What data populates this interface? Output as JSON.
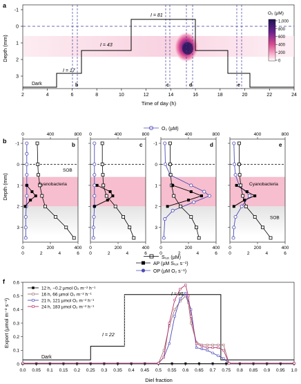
{
  "panel_a": {
    "label": "a",
    "xlabel": "Time of day (h)",
    "ylabel": "Depth (mm)",
    "xticks": [
      "2",
      "4",
      "6",
      "8",
      "10",
      "12",
      "14",
      "16",
      "18",
      "20",
      "22",
      "24"
    ],
    "yticks": [
      "-1",
      "0",
      "1",
      "2",
      "3"
    ],
    "colorbar_title": "O₂ (µM)",
    "colorbar_ticks": [
      "1,000",
      "800",
      "600",
      "400",
      "200",
      "0"
    ],
    "step_labels": {
      "dark": "Dark",
      "i17": "I = 17",
      "i43": "I = 43",
      "i81": "I = 81"
    },
    "marker_labels": [
      "b",
      "c",
      "d",
      "e"
    ]
  },
  "profiles": {
    "top_axis_label": "O₂ (µM)",
    "top_ticks": [
      "0",
      "400",
      "800"
    ],
    "bottom_axis_label": "Sₜₒₜ (µM)",
    "bottom_ticks": [
      "0",
      "200",
      "400"
    ],
    "rate_ticks": [
      "0",
      "2",
      "4",
      "6"
    ],
    "depth_label": "Depth (mm)",
    "depth_ticks": [
      "-1",
      "0",
      "1",
      "2",
      "3"
    ],
    "panels": [
      {
        "label": "b",
        "sob_label": "SOB",
        "cyano_label": "Cyanobacteria"
      },
      {
        "label": "c"
      },
      {
        "label": "d"
      },
      {
        "label": "e",
        "cyano_label": "Cyanobacteria",
        "sob_label": "SOB"
      }
    ],
    "legend_ap": "AP (µM Sₜₒₜ s⁻¹)",
    "legend_op": "OP (µM O₂ s⁻¹)"
  },
  "chart_data": [
    {
      "type": "line",
      "panel": "f",
      "xlabel": "Diel fraction",
      "ylabel": "Export (µmol m⁻² s⁻¹)",
      "xlim": [
        0,
        1.0
      ],
      "ylim": [
        0,
        0.6
      ],
      "xticks": [
        "0.0",
        "0.05",
        "0.1",
        "0.15",
        "0.2",
        "0.25",
        "0.3",
        "0.35",
        "0.4",
        "0.45",
        "0.5",
        "0.55",
        "0.6",
        "0.65",
        "0.7",
        "0.75",
        "0.8",
        "0.85",
        "0.9",
        "0.95",
        "1.0"
      ],
      "yticks": [
        "0",
        "0.1",
        "0.2",
        "0.3",
        "0.4",
        "0.5",
        "0.6"
      ],
      "light_labels": {
        "dark": "Dark",
        "i22": "I = 22",
        "i95": "I = 95"
      },
      "light_steps": [
        {
          "x0": 0.0,
          "x1": 0.25,
          "y": 0.03
        },
        {
          "x0": 0.25,
          "x1": 0.375,
          "y": 0.13
        },
        {
          "x0": 0.375,
          "x1": 0.73,
          "y": 0.51
        },
        {
          "x0": 0.73,
          "x1": 1.0,
          "y": 0.03
        }
      ],
      "series": [
        {
          "name": "12 h, −0.2 µmol O₂ m⁻² h⁻¹",
          "color": "#222222",
          "x": [
            0.0,
            0.05,
            0.1,
            0.15,
            0.2,
            0.25,
            0.3,
            0.35,
            0.4,
            0.45,
            0.5,
            0.55,
            0.6,
            0.65,
            0.7,
            0.75,
            0.8,
            0.85,
            0.9,
            0.95,
            1.0
          ],
          "y": [
            0.003,
            0.003,
            0.003,
            0.003,
            0.003,
            0.003,
            0.003,
            0.003,
            0.003,
            0.003,
            0.003,
            0.003,
            0.003,
            0.003,
            0.003,
            0.003,
            0.003,
            0.003,
            0.003,
            0.003,
            0.003
          ]
        },
        {
          "name": "16 h, 66 µmol O₂ m⁻² h⁻¹",
          "color": "#a07070",
          "x": [
            0.0,
            0.5,
            0.52,
            0.54,
            0.56,
            0.58,
            0.6,
            0.61,
            0.62,
            0.64,
            0.66,
            0.68,
            0.7,
            0.72,
            0.74,
            0.76,
            1.0
          ],
          "y": [
            0.005,
            0.005,
            0.1,
            0.28,
            0.4,
            0.46,
            0.5,
            0.45,
            0.3,
            0.16,
            0.14,
            0.14,
            0.14,
            0.14,
            0.14,
            0.005,
            0.005
          ]
        },
        {
          "name": "21 h, 121 µmol O₂ m⁻² h⁻¹",
          "color": "#4a4ab8",
          "x": [
            0.0,
            0.5,
            0.52,
            0.54,
            0.56,
            0.58,
            0.6,
            0.62,
            0.64,
            0.66,
            0.68,
            0.7,
            0.72,
            0.74,
            0.76,
            1.0
          ],
          "y": [
            0.005,
            0.005,
            0.05,
            0.15,
            0.35,
            0.48,
            0.52,
            0.4,
            0.12,
            0.11,
            0.1,
            0.08,
            0.06,
            0.04,
            0.005,
            0.005
          ]
        },
        {
          "name": "24 h, 183 µmol O₂ m⁻² h⁻¹",
          "color": "#b0306a",
          "x": [
            0.0,
            0.5,
            0.52,
            0.54,
            0.56,
            0.58,
            0.6,
            0.61,
            0.62,
            0.64,
            0.66,
            0.68,
            0.7,
            0.72,
            0.74,
            0.76,
            1.0
          ],
          "y": [
            0.005,
            0.005,
            0.05,
            0.3,
            0.47,
            0.55,
            0.58,
            0.5,
            0.35,
            0.15,
            0.13,
            0.12,
            0.12,
            0.12,
            0.1,
            0.005,
            0.005
          ]
        }
      ]
    }
  ]
}
